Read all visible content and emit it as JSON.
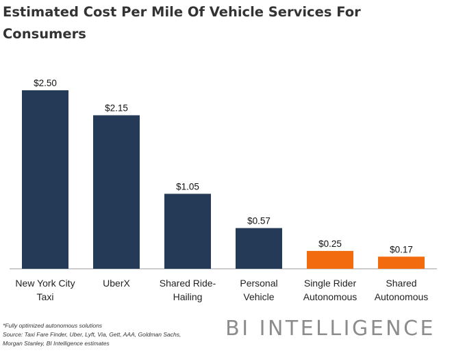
{
  "title": "Estimated Cost Per Mile Of Vehicle Services For Consumers",
  "colors": {
    "standard": "#253a57",
    "autonomous": "#f26b0f"
  },
  "chart_data": {
    "type": "bar",
    "title": "Estimated Cost Per Mile Of Vehicle Services For Consumers",
    "xlabel": "",
    "ylabel": "",
    "ylim": [
      0,
      2.5
    ],
    "grid": false,
    "legend": "none",
    "categories": [
      [
        "New York City",
        "Taxi"
      ],
      [
        "UberX"
      ],
      [
        "Shared Ride-",
        "Hailing"
      ],
      [
        "Personal",
        "Vehicle"
      ],
      [
        "Single Rider",
        "Autonomous"
      ],
      [
        "Shared",
        "Autonomous"
      ]
    ],
    "values": [
      2.5,
      2.15,
      1.05,
      0.57,
      0.25,
      0.17
    ],
    "data_labels": [
      "$2.50",
      "$2.15",
      "$1.05",
      "$0.57",
      "$0.25",
      "$0.17"
    ],
    "bar_colors": [
      "#253a57",
      "#253a57",
      "#253a57",
      "#253a57",
      "#f26b0f",
      "#f26b0f"
    ]
  },
  "footnote": {
    "line1": "*Fully optimized autonomous solutions",
    "line2": "Source: Taxi Fare Finder, Uber, Lyft, Via, Gett, AAA, Goldman Sachs,",
    "line3": "Morgan Stanley, BI Intelligence estimates"
  },
  "brand": "BI INTELLIGENCE"
}
